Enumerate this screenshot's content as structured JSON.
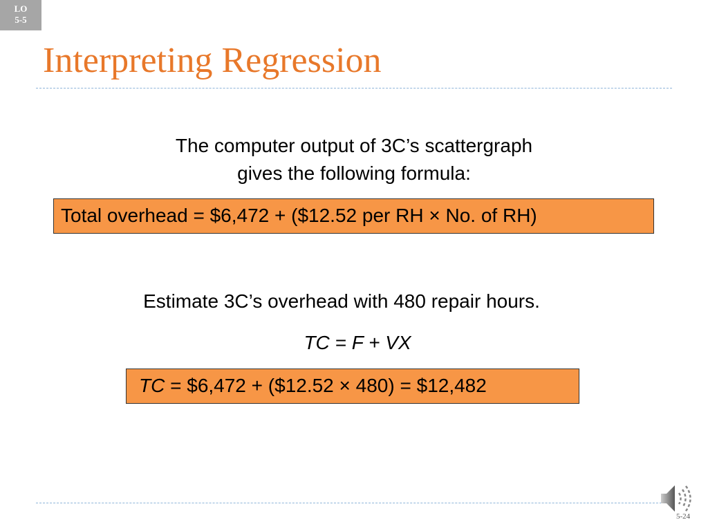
{
  "badge": {
    "line1": "LO",
    "line2": "5-5"
  },
  "title": "Interpreting Regression",
  "intro": [
    "The computer output of 3C’s scattergraph",
    "gives the following formula:"
  ],
  "formula": "Total overhead = $6,472 + ($12.52 per RH × No. of RH)",
  "question": "Estimate 3C’s overhead with 480 repair hours.",
  "equation": "TC = F + VX",
  "result": {
    "variable": "TC",
    "expression": "= $6,472 + ($12.52 × 480) = $12,482"
  },
  "page_number": "5-24"
}
